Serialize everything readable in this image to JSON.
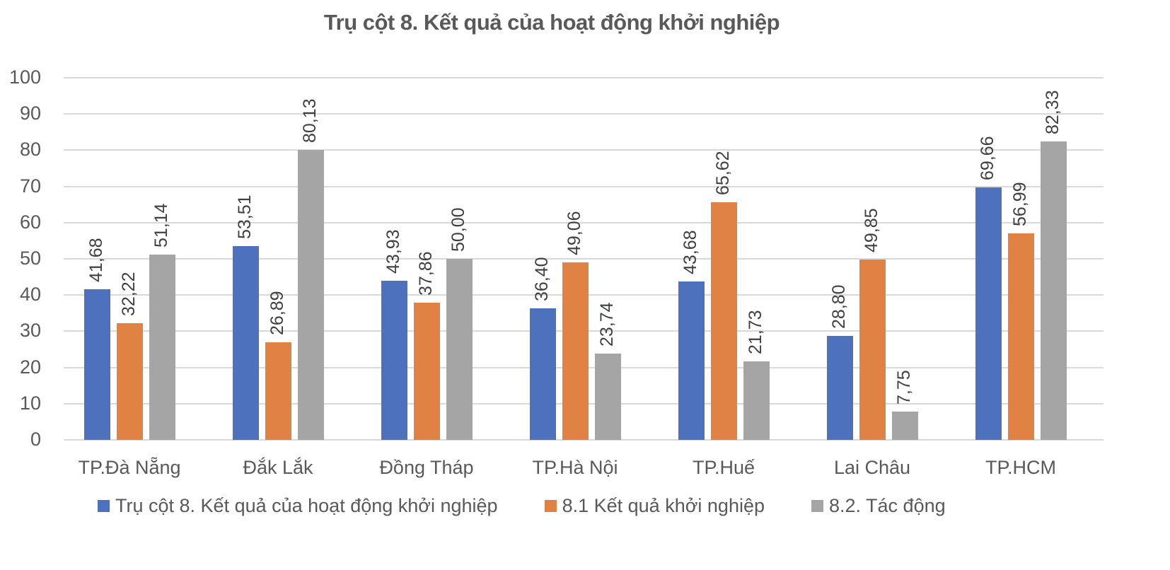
{
  "chart_data": {
    "type": "bar",
    "title": "Trụ cột 8. Kết quả của hoạt động khởi nghiệp",
    "xlabel": "",
    "ylabel": "",
    "ylim": [
      0,
      100
    ],
    "yticks": [
      0,
      10,
      20,
      30,
      40,
      50,
      60,
      70,
      80,
      90,
      100
    ],
    "grid": true,
    "legend_position": "bottom",
    "categories": [
      "TP.Đà Nẵng",
      "Đắk Lắk",
      "Đồng Tháp",
      "TP.Hà Nội",
      "TP.Huế",
      "Lai Châu",
      "TP.HCM"
    ],
    "series": [
      {
        "name": "Trụ cột 8. Kết quả của hoạt động khởi nghiệp",
        "color": "#4E71BE",
        "values": [
          41.68,
          53.51,
          43.93,
          36.4,
          43.68,
          28.8,
          69.66
        ],
        "labels": [
          "41,68",
          "53,51",
          "43,93",
          "36,40",
          "43,68",
          "28,80",
          "69,66"
        ]
      },
      {
        "name": "8.1 Kết quả khởi nghiệp",
        "color": "#DF8244",
        "values": [
          32.22,
          26.89,
          37.86,
          49.06,
          65.62,
          49.85,
          56.99
        ],
        "labels": [
          "32,22",
          "26,89",
          "37,86",
          "49,06",
          "65,62",
          "49,85",
          "56,99"
        ]
      },
      {
        "name": "8.2. Tác động",
        "color": "#A5A5A5",
        "values": [
          51.14,
          80.13,
          50.0,
          23.74,
          21.73,
          7.75,
          82.33
        ],
        "labels": [
          "51,14",
          "80,13",
          "50,00",
          "23,74",
          "21,73",
          "7,75",
          "82,33"
        ]
      }
    ]
  }
}
